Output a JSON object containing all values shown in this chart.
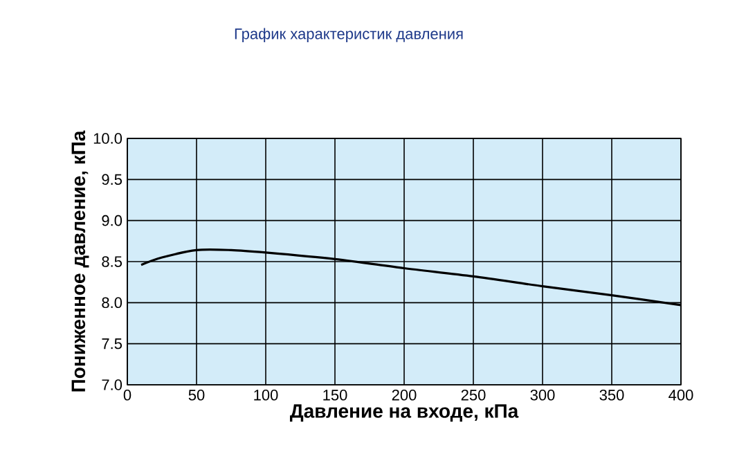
{
  "chart_data": {
    "type": "line",
    "title": "График характеристик давления",
    "xlabel": "Давление на входе, кПа",
    "ylabel": "Пониженное давление, кПа",
    "x": [
      10,
      25,
      50,
      75,
      100,
      150,
      200,
      250,
      300,
      350,
      400
    ],
    "series": [
      {
        "color": "#000000",
        "values": [
          8.46,
          8.55,
          8.64,
          8.64,
          8.61,
          8.53,
          8.42,
          8.32,
          8.2,
          8.09,
          7.97
        ]
      }
    ],
    "xlim": [
      0,
      400
    ],
    "ylim": [
      7.0,
      10.0
    ],
    "xticks": [
      0,
      50,
      100,
      150,
      200,
      250,
      300,
      350,
      400
    ],
    "yticks": [
      {
        "value": 7.0,
        "label": "7.0"
      },
      {
        "value": 7.5,
        "label": "7.5"
      },
      {
        "value": 8.0,
        "label": "8.0"
      },
      {
        "value": 8.5,
        "label": "8.5"
      },
      {
        "value": 9.0,
        "label": "9.0"
      },
      {
        "value": 9.5,
        "label": "9.5"
      },
      {
        "value": 10.0,
        "label": "10.0"
      }
    ],
    "grid": true,
    "marker": "none",
    "line_style": "solid"
  }
}
